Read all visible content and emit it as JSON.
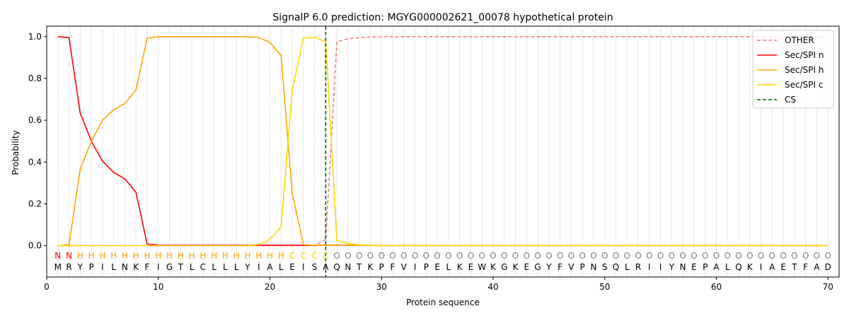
{
  "chart_data": {
    "type": "line",
    "title": "SignalP 6.0 prediction: MGYG000002621_00078 hypothetical protein",
    "xlabel": "Protein sequence",
    "ylabel": "Probability",
    "xlim": [
      0,
      71
    ],
    "ylim": [
      -0.15,
      1.05
    ],
    "x_ticks": [
      0,
      10,
      20,
      30,
      40,
      50,
      60,
      70
    ],
    "y_ticks": [
      0.0,
      0.2,
      0.4,
      0.6,
      0.8,
      1.0
    ],
    "sequence": "MRYPILNKFIGTLCLLLYIALEISAQNTKPFVIPELKEWKGKEGYFVPNSQLRIIYNEPALQKIAETFAD",
    "regions": "NNHHHHHHHHHHHHHHHHHHHCCCCOOOOOOOOOOOOOOOOOOOOOOOOOOOOOOOOOOOOOOOOOOOOO",
    "region_colors": {
      "N": "#ff0000",
      "H": "#ffa500",
      "C": "#ffd700",
      "O": "#808080"
    },
    "legend_position": "upper right",
    "cs_position": 25,
    "series": [
      {
        "name": "OTHER",
        "color": "#f08080",
        "dash": true,
        "values": [
          0,
          0,
          0,
          0,
          0,
          0,
          0,
          0,
          0,
          0,
          0,
          0,
          0,
          0,
          0,
          0,
          0,
          0,
          0,
          0,
          0,
          0,
          0,
          0,
          0.03,
          0.975,
          0.99,
          0.995,
          0.998,
          0.999,
          1,
          1,
          1,
          1,
          1,
          1,
          1,
          1,
          1,
          1,
          1,
          1,
          1,
          1,
          1,
          1,
          1,
          1,
          1,
          1,
          1,
          1,
          1,
          1,
          1,
          1,
          1,
          1,
          1,
          1,
          1,
          1,
          1,
          1,
          1,
          1,
          1,
          1,
          1,
          1
        ]
      },
      {
        "name": "Sec/SPI n",
        "color": "#ff0000",
        "dash": false,
        "values": [
          1.0,
          0.995,
          0.635,
          0.5,
          0.405,
          0.35,
          0.32,
          0.255,
          0.008,
          0.002,
          0.002,
          0.002,
          0.002,
          0.002,
          0.002,
          0.002,
          0.002,
          0.002,
          0.002,
          0.002,
          0.002,
          0.002,
          0.002,
          0.002,
          0.002,
          0.002,
          0.002,
          0.002,
          0.002,
          0,
          0,
          0,
          0,
          0,
          0,
          0,
          0,
          0,
          0,
          0,
          0,
          0,
          0,
          0,
          0,
          0,
          0,
          0,
          0,
          0,
          0,
          0,
          0,
          0,
          0,
          0,
          0,
          0,
          0,
          0,
          0,
          0,
          0,
          0,
          0,
          0,
          0,
          0,
          0,
          0
        ]
      },
      {
        "name": "Sec/SPI h",
        "color": "#ffa500",
        "dash": false,
        "values": [
          0,
          0.005,
          0.365,
          0.5,
          0.6,
          0.65,
          0.68,
          0.745,
          0.992,
          1.0,
          1.0,
          1.0,
          1.0,
          1.0,
          1.0,
          1.0,
          1.0,
          0.999,
          0.996,
          0.972,
          0.91,
          0.25,
          0.005,
          0.002,
          0.002,
          0.002,
          0.002,
          0.002,
          0.002,
          0,
          0,
          0,
          0,
          0,
          0,
          0,
          0,
          0,
          0,
          0,
          0,
          0,
          0,
          0,
          0,
          0,
          0,
          0,
          0,
          0,
          0,
          0,
          0,
          0,
          0,
          0,
          0,
          0,
          0,
          0,
          0,
          0,
          0,
          0,
          0,
          0,
          0,
          0,
          0,
          0
        ]
      },
      {
        "name": "Sec/SPI c",
        "color": "#ffd700",
        "dash": false,
        "values": [
          0,
          0,
          0,
          0,
          0,
          0,
          0,
          0,
          0,
          0,
          0,
          0,
          0,
          0,
          0,
          0,
          0,
          0,
          0.005,
          0.03,
          0.09,
          0.745,
          0.993,
          0.997,
          0.975,
          0.025,
          0.01,
          0.004,
          0.002,
          0,
          0,
          0,
          0,
          0,
          0,
          0,
          0,
          0,
          0,
          0,
          0,
          0,
          0,
          0,
          0,
          0,
          0,
          0,
          0,
          0,
          0,
          0,
          0,
          0,
          0,
          0,
          0,
          0,
          0,
          0,
          0,
          0,
          0,
          0,
          0,
          0,
          0,
          0,
          0,
          0
        ]
      }
    ],
    "cs_legend": {
      "name": "CS",
      "color": "#006400"
    }
  }
}
